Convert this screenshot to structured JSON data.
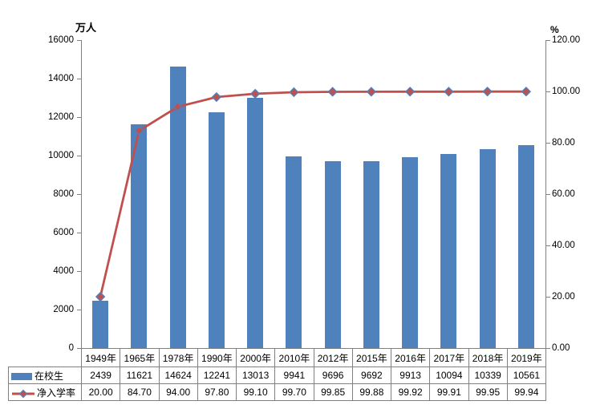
{
  "chart_data": {
    "type": "bar",
    "combo": "bar+line",
    "title": "",
    "categories": [
      "1949年",
      "1965年",
      "1978年",
      "1990年",
      "2000年",
      "2010年",
      "2012年",
      "2015年",
      "2016年",
      "2017年",
      "2018年",
      "2019年"
    ],
    "series": [
      {
        "name": "在校生",
        "type": "bar",
        "axis": "left",
        "color": "#4f81bd",
        "values": [
          2439,
          11621,
          14624,
          12241,
          13013,
          9941,
          9696,
          9692,
          9913,
          10094,
          10339,
          10561
        ],
        "labels": [
          "2439",
          "11621",
          "14624",
          "12241",
          "13013",
          "9941",
          "9696",
          "9692",
          "9913",
          "10094",
          "10339",
          "10561"
        ]
      },
      {
        "name": "净入学率",
        "type": "line",
        "axis": "right",
        "color": "#c0504d",
        "marker": "diamond",
        "marker_border_color": "#4f81bd",
        "values": [
          20.0,
          84.7,
          94.0,
          97.8,
          99.1,
          99.7,
          99.85,
          99.88,
          99.92,
          99.91,
          99.95,
          99.94
        ],
        "labels": [
          "20.00",
          "84.70",
          "94.00",
          "97.80",
          "99.10",
          "99.70",
          "99.85",
          "99.88",
          "99.92",
          "99.91",
          "99.95",
          "99.94"
        ]
      }
    ],
    "left_axis": {
      "title": "万人",
      "min": 0,
      "max": 16000,
      "tick_labels": [
        "0",
        "2000",
        "4000",
        "6000",
        "8000",
        "10000",
        "12000",
        "14000",
        "16000"
      ]
    },
    "right_axis": {
      "title": "%",
      "min": 0,
      "max": 120,
      "tick_labels": [
        "0.00",
        "20.00",
        "40.00",
        "60.00",
        "80.00",
        "100.00",
        "120.00"
      ]
    },
    "grid": false,
    "legend_position": "table-left",
    "axis_color": "#808080",
    "table_border_color": "#808080",
    "background_color": "#ffffff"
  }
}
